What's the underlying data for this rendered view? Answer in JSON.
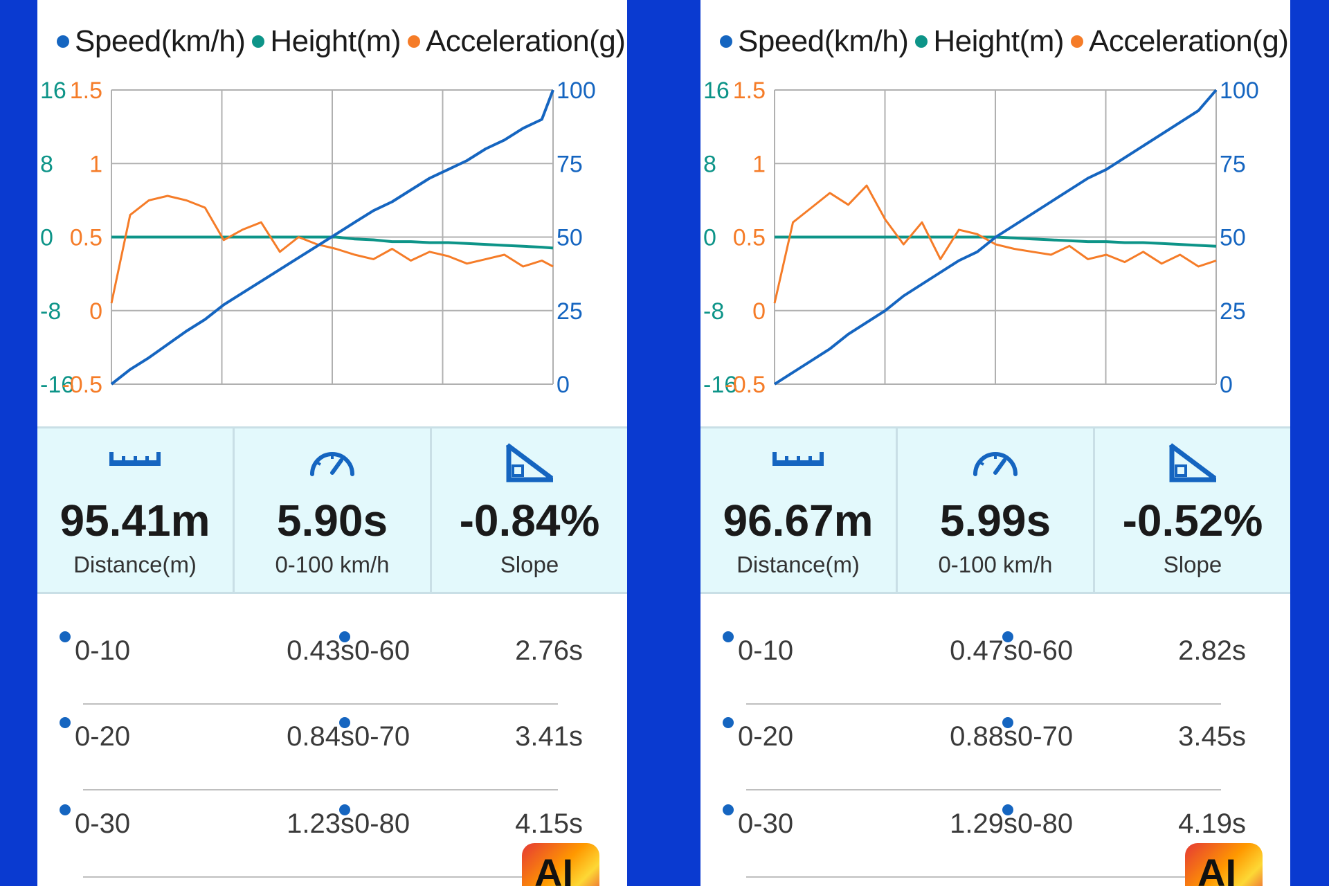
{
  "colors": {
    "background": "#0a3ad0",
    "speed": "#1565c0",
    "height": "#0d9488",
    "acceleration": "#f57c28",
    "stats_bg": "#e3f9fc",
    "grid": "#b0b0b0"
  },
  "icons": [
    "ruler-icon",
    "speedometer-icon",
    "slope-icon"
  ],
  "panels": [
    {
      "legend": {
        "speed": "Speed(km/h)",
        "height": "Height(m)",
        "acceleration": "Acceleration(g)"
      },
      "stats": {
        "distance_value": "95.41m",
        "distance_label": "Distance(m)",
        "time_value": "5.90s",
        "time_label": "0-100 km/h",
        "slope_value": "-0.84%",
        "slope_label": "Slope"
      },
      "splits": [
        {
          "a_label": "0-10",
          "a_value": "0.43s",
          "b_label": "0-60",
          "b_value": "2.76s"
        },
        {
          "a_label": "0-20",
          "a_value": "0.84s",
          "b_label": "0-70",
          "b_value": "3.41s"
        },
        {
          "a_label": "0-30",
          "a_value": "1.23s",
          "b_label": "0-80",
          "b_value": "4.15s"
        }
      ],
      "badge": "AI"
    },
    {
      "legend": {
        "speed": "Speed(km/h)",
        "height": "Height(m)",
        "acceleration": "Acceleration(g)"
      },
      "stats": {
        "distance_value": "96.67m",
        "distance_label": "Distance(m)",
        "time_value": "5.99s",
        "time_label": "0-100 km/h",
        "slope_value": "-0.52%",
        "slope_label": "Slope"
      },
      "splits": [
        {
          "a_label": "0-10",
          "a_value": "0.47s",
          "b_label": "0-60",
          "b_value": "2.82s"
        },
        {
          "a_label": "0-20",
          "a_value": "0.88s",
          "b_label": "0-70",
          "b_value": "3.45s"
        },
        {
          "a_label": "0-30",
          "a_value": "1.29s",
          "b_label": "0-80",
          "b_value": "4.19s"
        }
      ],
      "badge": "AI"
    }
  ],
  "chart_data": [
    {
      "type": "line",
      "title": "",
      "x": [
        0,
        0.25,
        0.5,
        0.75,
        1,
        1.25,
        1.5,
        1.75,
        2,
        2.25,
        2.5,
        2.75,
        3,
        3.25,
        3.5,
        3.75,
        4,
        4.25,
        4.5,
        4.75,
        5,
        5.25,
        5.5,
        5.75,
        5.9
      ],
      "xlim": [
        0,
        5.9
      ],
      "grid": true,
      "legend_position": "top",
      "axes": {
        "height": {
          "ticks": [
            "16",
            "8",
            "0",
            "-8",
            "-16"
          ],
          "ylim": [
            -16,
            16
          ],
          "side": "left-outer"
        },
        "acceleration": {
          "ticks": [
            "1.5",
            "1",
            "0.5",
            "0",
            "-0.5"
          ],
          "ylim": [
            -0.5,
            1.5
          ],
          "side": "left-inner"
        },
        "speed": {
          "ticks": [
            "100",
            "75",
            "50",
            "25",
            "0"
          ],
          "ylim": [
            0,
            100
          ],
          "side": "right"
        }
      },
      "series": [
        {
          "name": "Speed(km/h)",
          "axis": "speed",
          "values": [
            0,
            5,
            9,
            13.5,
            18,
            22,
            27,
            31,
            35,
            39,
            43,
            47,
            51,
            55,
            59,
            62,
            66,
            70,
            73,
            76,
            80,
            83,
            87,
            90,
            100
          ]
        },
        {
          "name": "Height(m)",
          "axis": "height",
          "values": [
            0,
            0,
            0,
            0,
            0,
            0,
            0,
            0,
            0,
            0,
            0,
            0,
            0,
            -0.2,
            -0.3,
            -0.5,
            -0.5,
            -0.6,
            -0.6,
            -0.7,
            -0.8,
            -0.9,
            -1,
            -1.1,
            -1.2
          ]
        },
        {
          "name": "Acceleration(g)",
          "axis": "acceleration",
          "values": [
            0.05,
            0.65,
            0.75,
            0.78,
            0.75,
            0.7,
            0.48,
            0.55,
            0.6,
            0.4,
            0.5,
            0.45,
            0.42,
            0.38,
            0.35,
            0.42,
            0.34,
            0.4,
            0.37,
            0.32,
            0.35,
            0.38,
            0.3,
            0.34,
            0.3
          ]
        }
      ]
    },
    {
      "type": "line",
      "title": "",
      "x": [
        0,
        0.25,
        0.5,
        0.75,
        1,
        1.25,
        1.5,
        1.75,
        2,
        2.25,
        2.5,
        2.75,
        3,
        3.25,
        3.5,
        3.75,
        4,
        4.25,
        4.5,
        4.75,
        5,
        5.25,
        5.5,
        5.75,
        5.99
      ],
      "xlim": [
        0,
        5.99
      ],
      "grid": true,
      "legend_position": "top",
      "axes": {
        "height": {
          "ticks": [
            "16",
            "8",
            "0",
            "-8",
            "-16"
          ],
          "ylim": [
            -16,
            16
          ],
          "side": "left-outer"
        },
        "acceleration": {
          "ticks": [
            "1.5",
            "1",
            "0.5",
            "0",
            "-0.5"
          ],
          "ylim": [
            -0.5,
            1.5
          ],
          "side": "left-inner"
        },
        "speed": {
          "ticks": [
            "100",
            "75",
            "50",
            "25",
            "0"
          ],
          "ylim": [
            0,
            100
          ],
          "side": "right"
        }
      },
      "series": [
        {
          "name": "Speed(km/h)",
          "axis": "speed",
          "values": [
            0,
            4,
            8,
            12,
            17,
            21,
            25,
            30,
            34,
            38,
            42,
            45,
            50,
            54,
            58,
            62,
            66,
            70,
            73,
            77,
            81,
            85,
            89,
            93,
            100
          ]
        },
        {
          "name": "Height(m)",
          "axis": "height",
          "values": [
            0,
            0,
            0,
            0,
            0,
            0,
            0,
            0,
            0,
            0,
            0,
            0,
            0,
            -0.1,
            -0.2,
            -0.3,
            -0.4,
            -0.5,
            -0.5,
            -0.6,
            -0.6,
            -0.7,
            -0.8,
            -0.9,
            -1
          ]
        },
        {
          "name": "Acceleration(g)",
          "axis": "acceleration",
          "values": [
            0.05,
            0.6,
            0.7,
            0.8,
            0.72,
            0.85,
            0.62,
            0.45,
            0.6,
            0.35,
            0.55,
            0.52,
            0.45,
            0.42,
            0.4,
            0.38,
            0.44,
            0.35,
            0.38,
            0.33,
            0.4,
            0.32,
            0.38,
            0.3,
            0.34
          ]
        }
      ]
    }
  ]
}
